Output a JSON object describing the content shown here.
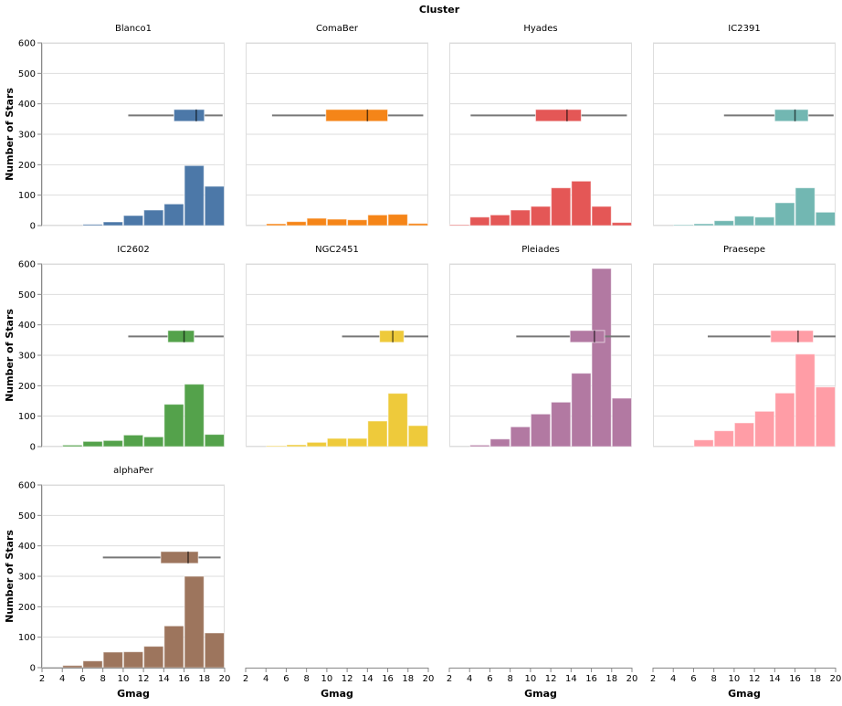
{
  "chart_data": {
    "type": "bar",
    "title": "Cluster",
    "xlabel": "Gmag",
    "ylabel": "Number of Stars",
    "xlim": [
      2,
      20
    ],
    "ylim": [
      0,
      600
    ],
    "x_ticks": [
      "2",
      "4",
      "6",
      "8",
      "10",
      "12",
      "14",
      "16",
      "18",
      "20"
    ],
    "y_ticks": [
      "0",
      "100",
      "200",
      "300",
      "400",
      "500",
      "600"
    ],
    "bin_starts": [
      2,
      4,
      6,
      8,
      10,
      12,
      14,
      16,
      18
    ],
    "bin_width": 2,
    "boxplot_level": 362,
    "grid": true,
    "facets": [
      {
        "name": "Blanco1",
        "color": "#4c78a8",
        "counts": [
          0,
          0,
          4,
          12,
          33,
          51,
          71,
          197,
          129
        ],
        "box": {
          "min": 10.5,
          "q1": 15.0,
          "median": 17.2,
          "q3": 18.0,
          "max": 19.8
        }
      },
      {
        "name": "ComaBer",
        "color": "#f58518",
        "counts": [
          0,
          6,
          13,
          24,
          21,
          19,
          35,
          37,
          7
        ],
        "box": {
          "min": 4.6,
          "q1": 9.9,
          "median": 14.0,
          "q3": 16.0,
          "max": 19.5
        }
      },
      {
        "name": "Hyades",
        "color": "#e45756",
        "counts": [
          3,
          28,
          35,
          51,
          63,
          124,
          146,
          63,
          10
        ],
        "box": {
          "min": 4.1,
          "q1": 10.5,
          "median": 13.6,
          "q3": 15.0,
          "max": 19.5
        }
      },
      {
        "name": "IC2391",
        "color": "#72b7b2",
        "counts": [
          0,
          3,
          6,
          16,
          31,
          28,
          75,
          124,
          44
        ],
        "box": {
          "min": 9.0,
          "q1": 14.0,
          "median": 16.0,
          "q3": 17.3,
          "max": 19.8
        }
      },
      {
        "name": "IC2602",
        "color": "#54a24b",
        "counts": [
          0,
          5,
          17,
          20,
          38,
          32,
          139,
          205,
          40
        ],
        "box": {
          "min": 10.5,
          "q1": 14.4,
          "median": 16.0,
          "q3": 17.0,
          "max": 19.9
        }
      },
      {
        "name": "NGC2451",
        "color": "#eeca3b",
        "counts": [
          0,
          3,
          6,
          14,
          27,
          27,
          84,
          175,
          69
        ],
        "box": {
          "min": 11.5,
          "q1": 15.2,
          "median": 16.5,
          "q3": 17.6,
          "max": 20.0
        }
      },
      {
        "name": "Pleiades",
        "color": "#b279a2",
        "counts": [
          0,
          5,
          25,
          65,
          107,
          146,
          241,
          585,
          159
        ],
        "box": {
          "min": 8.6,
          "q1": 13.9,
          "median": 16.3,
          "q3": 17.3,
          "max": 19.8
        }
      },
      {
        "name": "Praesepe",
        "color": "#ff9da6",
        "counts": [
          0,
          0,
          22,
          52,
          78,
          116,
          176,
          304,
          196
        ],
        "box": {
          "min": 7.4,
          "q1": 13.6,
          "median": 16.3,
          "q3": 17.8,
          "max": 20.0
        }
      },
      {
        "name": "alphaPer",
        "color": "#9d755d",
        "counts": [
          0,
          7,
          22,
          51,
          52,
          70,
          137,
          300,
          114
        ],
        "box": {
          "min": 8.0,
          "q1": 13.7,
          "median": 16.4,
          "q3": 17.4,
          "max": 19.6
        }
      }
    ]
  }
}
